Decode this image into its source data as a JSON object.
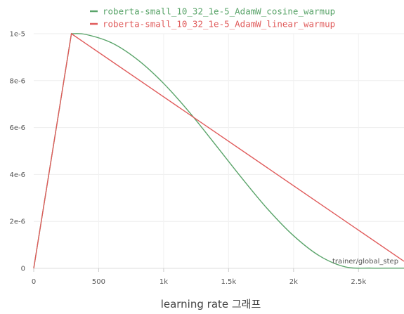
{
  "caption": "learning rate 그래프",
  "chart_data": {
    "type": "line",
    "xlabel": "trainer/global_step",
    "xlim": [
      0,
      2850
    ],
    "ylim": [
      0,
      1e-05
    ],
    "x_ticks": [
      0,
      500,
      1000,
      1500,
      2000,
      2500
    ],
    "x_tick_labels": [
      "0",
      "500",
      "1k",
      "1.5k",
      "2k",
      "2.5k"
    ],
    "y_ticks": [
      0,
      2e-06,
      4e-06,
      6e-06,
      8e-06,
      1e-05
    ],
    "y_tick_labels": [
      "0",
      "2e-6",
      "4e-6",
      "6e-6",
      "8e-6",
      "1e-5"
    ],
    "grid": true,
    "legend_position": "top",
    "warmup_steps": 290,
    "series": [
      {
        "name": "roberta-small_10_32_1e-5_AdamW_cosine_warmup",
        "color": "#5aa46a",
        "x": [
          0,
          290,
          400,
          600,
          800,
          1000,
          1200,
          1400,
          1600,
          1800,
          2000,
          2200,
          2400,
          2600,
          2750,
          2850
        ],
        "y": [
          0,
          1e-05,
          9.97e-06,
          9.61e-06,
          8.89e-06,
          7.88e-06,
          6.64e-06,
          5.26e-06,
          3.86e-06,
          2.53e-06,
          1.39e-06,
          5.3e-07,
          6e-08,
          1e-08,
          1e-08,
          1e-08
        ]
      },
      {
        "name": "roberta-small_10_32_1e-5_AdamW_linear_warmup",
        "color": "#e05b5b",
        "x": [
          0,
          290,
          2850
        ],
        "y": [
          0,
          1e-05,
          3e-07
        ]
      }
    ]
  }
}
